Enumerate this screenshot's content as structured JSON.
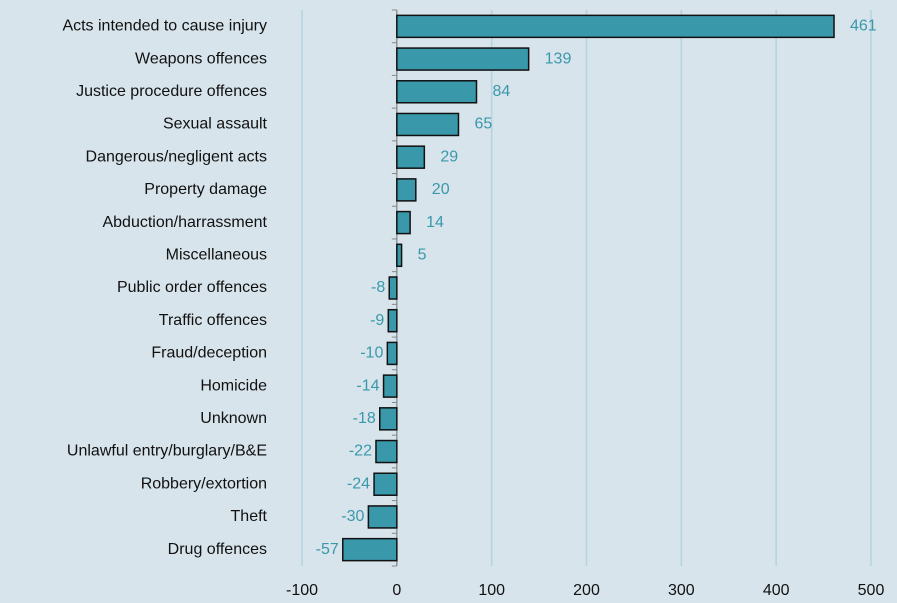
{
  "chart_data": {
    "type": "bar",
    "orientation": "horizontal",
    "categories": [
      "Acts intended to cause injury",
      "Weapons offences",
      "Justice procedure offences",
      "Sexual assault",
      "Dangerous/negligent acts",
      "Property damage",
      "Abduction/harrassment",
      "Miscellaneous",
      "Public order offences",
      "Traffic offences",
      "Fraud/deception",
      "Homicide",
      "Unknown",
      "Unlawful entry/burglary/B&E",
      "Robbery/extortion",
      "Theft",
      "Drug offences"
    ],
    "values": [
      461,
      139,
      84,
      65,
      29,
      20,
      14,
      5,
      -8,
      -9,
      -10,
      -14,
      -18,
      -22,
      -24,
      -30,
      -57
    ],
    "color": "#3a98ab",
    "xlim": [
      -100,
      500
    ],
    "xticks": [
      -100,
      0,
      100,
      200,
      300,
      400,
      500
    ],
    "grid": true
  }
}
